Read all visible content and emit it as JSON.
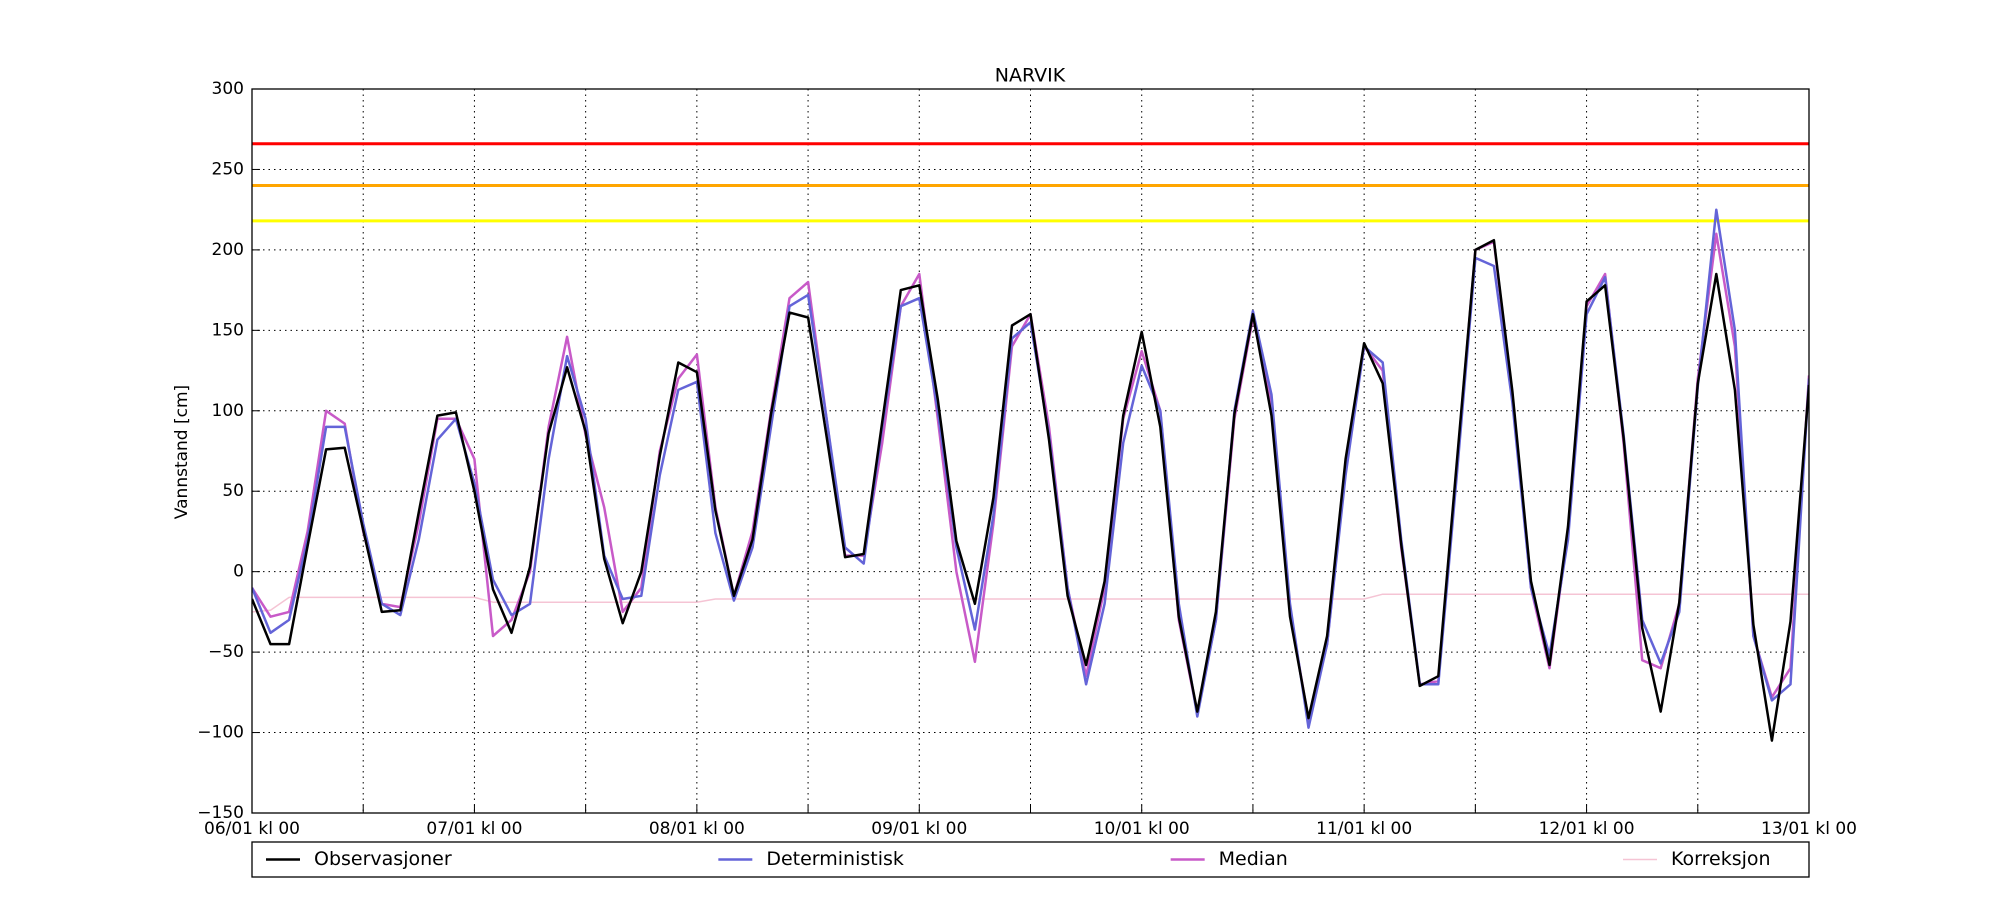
{
  "chart_data": {
    "type": "line",
    "title": "NARVIK",
    "y_label": "Vannstand [cm]",
    "x": [
      0,
      2,
      4,
      6,
      8,
      10,
      12,
      14,
      16,
      18,
      20,
      22,
      24,
      26,
      28,
      30,
      32,
      34,
      36,
      38,
      40,
      42,
      44,
      46,
      48,
      50,
      52,
      54,
      56,
      58,
      60,
      62,
      64,
      66,
      68,
      70,
      72,
      74,
      76,
      78,
      80,
      82,
      84,
      86,
      88,
      90,
      92,
      94,
      96,
      98,
      100,
      102,
      104,
      106,
      108,
      110,
      112,
      114,
      116,
      118,
      120,
      122,
      124,
      126,
      128,
      130,
      132,
      134,
      136,
      138,
      140,
      142,
      144,
      146,
      148,
      150,
      152,
      154,
      156,
      158,
      160,
      162,
      164,
      166,
      168
    ],
    "xlim": [
      0,
      168
    ],
    "xticks": [
      {
        "value": 0,
        "label": "06/01 kl 00"
      },
      {
        "value": 12,
        "label": null
      },
      {
        "value": 24,
        "label": "07/01 kl 00"
      },
      {
        "value": 36,
        "label": null
      },
      {
        "value": 48,
        "label": "08/01 kl 00"
      },
      {
        "value": 60,
        "label": null
      },
      {
        "value": 72,
        "label": "09/01 kl 00"
      },
      {
        "value": 84,
        "label": null
      },
      {
        "value": 96,
        "label": "10/01 kl 00"
      },
      {
        "value": 108,
        "label": null
      },
      {
        "value": 120,
        "label": "11/01 kl 00"
      },
      {
        "value": 132,
        "label": null
      },
      {
        "value": 144,
        "label": "12/01 kl 00"
      },
      {
        "value": 156,
        "label": null
      },
      {
        "value": 168,
        "label": "13/01 kl 00"
      }
    ],
    "ylim": [
      -150,
      300
    ],
    "yticks": [
      {
        "value": -150,
        "label": "−150"
      },
      {
        "value": -100,
        "label": "−100"
      },
      {
        "value": -50,
        "label": "−50"
      },
      0,
      50,
      100,
      150,
      200,
      250,
      300
    ],
    "grid": true,
    "legend": "below",
    "thresholds": [
      {
        "value": 266,
        "color": "#ff0000"
      },
      {
        "value": 240,
        "color": "#ffa500"
      },
      {
        "value": 218,
        "color": "#ffff00"
      }
    ],
    "series": [
      {
        "name": "Observasjoner",
        "color": "#000000",
        "width": 2.5,
        "values": [
          -17,
          -45,
          -45,
          16,
          76,
          77,
          26,
          -25,
          -24,
          37,
          97,
          99,
          50,
          -11,
          -38,
          3,
          86,
          127,
          87,
          8,
          -32,
          0,
          72,
          130,
          124,
          38,
          -15,
          20,
          98,
          161,
          158,
          84,
          9,
          11,
          93,
          175,
          178,
          107,
          19,
          -20,
          46,
          153,
          160,
          82,
          -15,
          -58,
          -6,
          97,
          149,
          90,
          -28,
          -87,
          -25,
          98,
          160,
          97,
          -28,
          -91,
          -40,
          70,
          142,
          117,
          17,
          -71,
          -65,
          68,
          200,
          206,
          112,
          -6,
          -58,
          28,
          168,
          178,
          83,
          -35,
          -87,
          -19,
          117,
          185,
          113,
          -33,
          -105,
          -31,
          116
        ]
      },
      {
        "name": "Deterministisk",
        "color": "#6464d8",
        "width": 2.5,
        "values": [
          -10,
          -38,
          -30,
          20,
          90,
          90,
          30,
          -20,
          -27,
          20,
          82,
          95,
          55,
          -5,
          -27,
          -20,
          70,
          134,
          95,
          10,
          -17,
          -15,
          60,
          113,
          118,
          24,
          -18,
          15,
          90,
          165,
          172,
          95,
          15,
          5,
          90,
          165,
          170,
          100,
          15,
          -36,
          35,
          145,
          155,
          85,
          -10,
          -70,
          -20,
          80,
          128,
          100,
          -20,
          -90,
          -30,
          100,
          162,
          110,
          -20,
          -97,
          -45,
          60,
          140,
          130,
          20,
          -70,
          -70,
          60,
          195,
          190,
          105,
          -10,
          -52,
          20,
          160,
          183,
          85,
          -30,
          -57,
          -25,
          115,
          225,
          150,
          -40,
          -80,
          -70,
          120
        ]
      },
      {
        "name": "Median",
        "color": "#c85ac8",
        "width": 2.5,
        "values": [
          -10,
          -28,
          -25,
          25,
          100,
          92,
          25,
          -20,
          -22,
          30,
          95,
          95,
          70,
          -40,
          -30,
          0,
          90,
          146,
          85,
          40,
          -25,
          -10,
          75,
          120,
          135,
          40,
          -15,
          25,
          100,
          170,
          180,
          95,
          10,
          10,
          80,
          165,
          185,
          95,
          0,
          -56,
          30,
          140,
          160,
          90,
          -10,
          -65,
          -10,
          95,
          137,
          100,
          -30,
          -88,
          -30,
          95,
          158,
          105,
          -25,
          -92,
          -45,
          65,
          140,
          125,
          15,
          -70,
          -68,
          65,
          200,
          205,
          110,
          -10,
          -60,
          25,
          165,
          185,
          80,
          -55,
          -60,
          -20,
          120,
          210,
          140,
          -40,
          -78,
          -60,
          122
        ]
      },
      {
        "name": "Korreksjon",
        "color": "#f5c4d4",
        "width": 1.5,
        "values": [
          -25,
          -24,
          -16,
          -16,
          -16,
          -16,
          -16,
          -16,
          -16,
          -16,
          -16,
          -16,
          -16,
          -19,
          -19,
          -19,
          -19,
          -19,
          -19,
          -19,
          -19,
          -19,
          -19,
          -19,
          -19,
          -17,
          -17,
          -17,
          -17,
          -17,
          -17,
          -17,
          -17,
          -17,
          -17,
          -17,
          -17,
          -17,
          -17,
          -17,
          -17,
          -17,
          -17,
          -17,
          -17,
          -17,
          -17,
          -17,
          -17,
          -17,
          -17,
          -17,
          -17,
          -17,
          -17,
          -17,
          -17,
          -17,
          -17,
          -17,
          -17,
          -14,
          -14,
          -14,
          -14,
          -14,
          -14,
          -14,
          -14,
          -14,
          -14,
          -14,
          -14,
          -14,
          -14,
          -14,
          -14,
          -14,
          -14,
          -14,
          -14,
          -14,
          -14,
          -14,
          -14
        ]
      }
    ]
  }
}
